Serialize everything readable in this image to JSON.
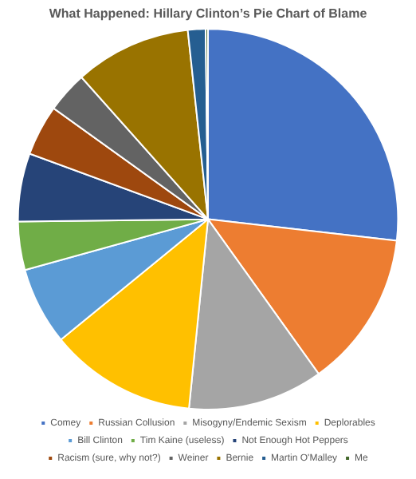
{
  "chart_data": {
    "type": "pie",
    "title": "What Happened: Hillary Clinton’s Pie Chart of Blame",
    "categories": [
      "Comey",
      "Russian Collusion",
      "Misogyny/Endemic Sexism",
      "Deplorables",
      "Bill Clinton",
      "Tim Kaine (useless)",
      "Not Enough Hot Peppers",
      "Racism (sure, why not?)",
      "Weiner",
      "Bernie",
      "Martin O'Malley",
      "Me"
    ],
    "values": [
      26.8,
      13.3,
      11.5,
      12.5,
      6.6,
      4.1,
      5.8,
      4.3,
      3.5,
      9.9,
      1.5,
      0.2
    ],
    "colors": [
      "#4472c4",
      "#ed7d31",
      "#a5a5a5",
      "#ffc000",
      "#5b9bd5",
      "#70ad47",
      "#264478",
      "#9e480e",
      "#636363",
      "#997300",
      "#255e91",
      "#43682b"
    ],
    "legend": "bottom"
  }
}
